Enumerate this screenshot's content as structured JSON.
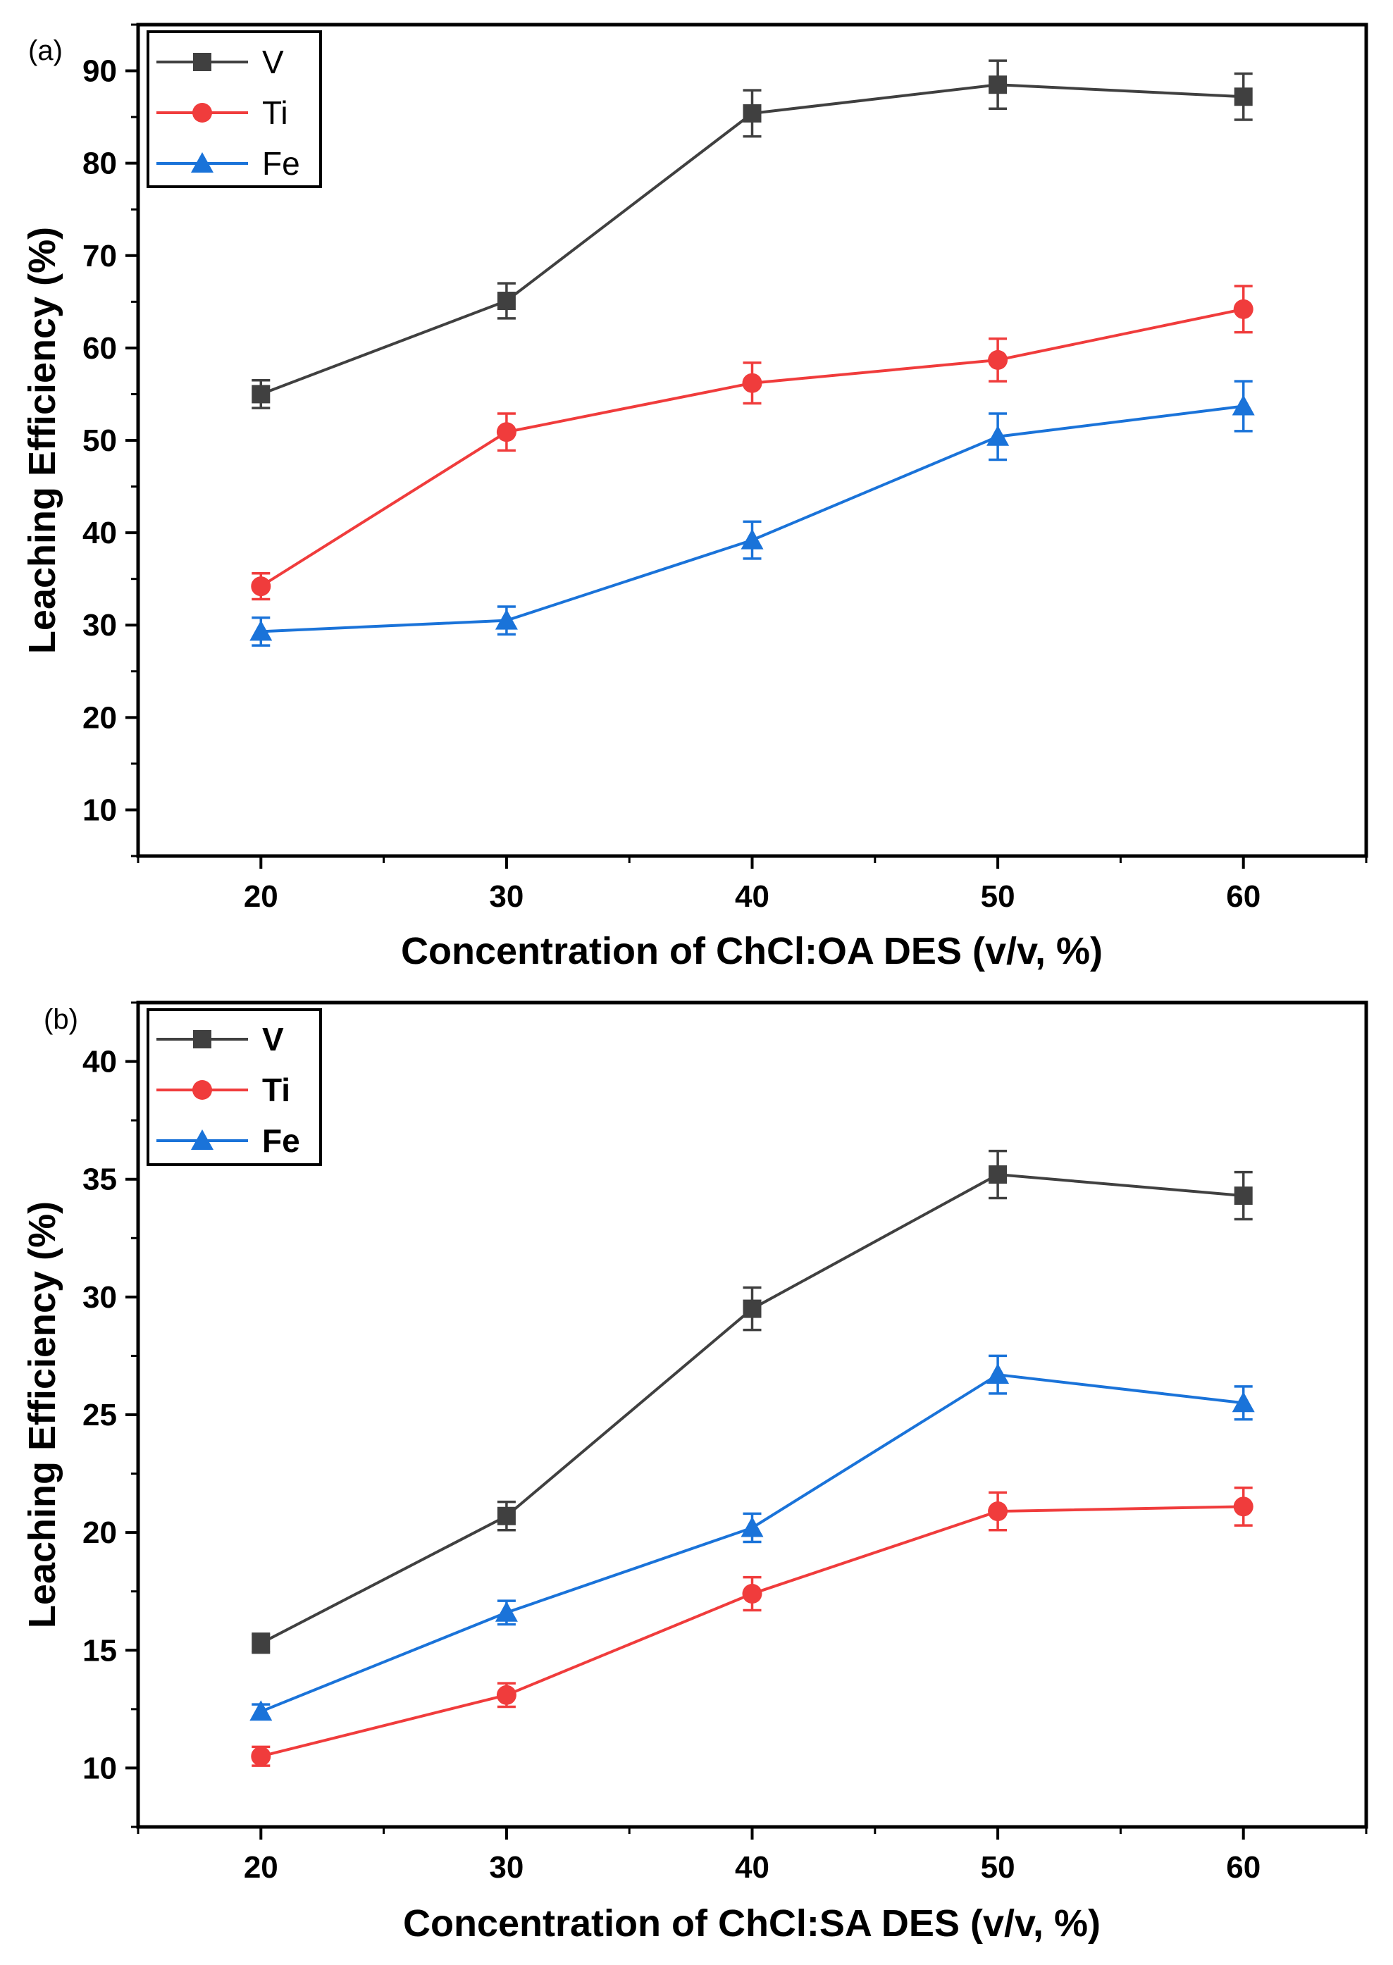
{
  "chart_data": [
    {
      "type": "line",
      "panel_label": "(a)",
      "xlabel": "Concentration of ChCl:OA DES (v/v, %)",
      "ylabel": "Leaching Efficiency (%)",
      "xlim": [
        15,
        65
      ],
      "ylim": [
        5,
        95
      ],
      "x_ticks": [
        20,
        30,
        40,
        50,
        60
      ],
      "y_ticks": [
        10,
        20,
        30,
        40,
        50,
        60,
        70,
        80,
        90
      ],
      "legend_position": "top-left",
      "x": [
        20,
        30,
        40,
        50,
        60
      ],
      "series": [
        {
          "name": "V",
          "color": "#404040",
          "marker": "square",
          "values": [
            55.0,
            65.1,
            85.4,
            88.5,
            87.2
          ],
          "errors": [
            1.5,
            1.9,
            2.5,
            2.6,
            2.5
          ]
        },
        {
          "name": "Ti",
          "color": "#f03c3c",
          "marker": "circle",
          "values": [
            34.2,
            50.9,
            56.2,
            58.7,
            64.2
          ],
          "errors": [
            1.4,
            2.0,
            2.2,
            2.3,
            2.5
          ]
        },
        {
          "name": "Fe",
          "color": "#1a73d9",
          "marker": "triangle",
          "values": [
            29.3,
            30.5,
            39.2,
            50.4,
            53.7
          ],
          "errors": [
            1.5,
            1.5,
            2.0,
            2.5,
            2.7
          ]
        }
      ]
    },
    {
      "type": "line",
      "panel_label": "(b)",
      "xlabel": "Concentration of ChCl:SA DES (v/v, %)",
      "ylabel": "Leaching Efficiency (%)",
      "xlim": [
        15,
        65
      ],
      "ylim": [
        7.5,
        42.5
      ],
      "x_ticks": [
        20,
        30,
        40,
        50,
        60
      ],
      "y_ticks": [
        10,
        15,
        20,
        25,
        30,
        35,
        40
      ],
      "legend_position": "top-left",
      "x": [
        20,
        30,
        40,
        50,
        60
      ],
      "series": [
        {
          "name": "V",
          "color": "#404040",
          "marker": "square",
          "values": [
            15.3,
            20.7,
            29.5,
            35.2,
            34.3
          ],
          "errors": [
            0.4,
            0.6,
            0.9,
            1.0,
            1.0
          ]
        },
        {
          "name": "Ti",
          "color": "#f03c3c",
          "marker": "circle",
          "values": [
            10.5,
            13.1,
            17.4,
            20.9,
            21.1
          ],
          "errors": [
            0.4,
            0.5,
            0.7,
            0.8,
            0.8
          ]
        },
        {
          "name": "Fe",
          "color": "#1a73d9",
          "marker": "triangle",
          "values": [
            12.4,
            16.6,
            20.2,
            26.7,
            25.5
          ],
          "errors": [
            0.3,
            0.5,
            0.6,
            0.8,
            0.7
          ]
        }
      ]
    }
  ]
}
